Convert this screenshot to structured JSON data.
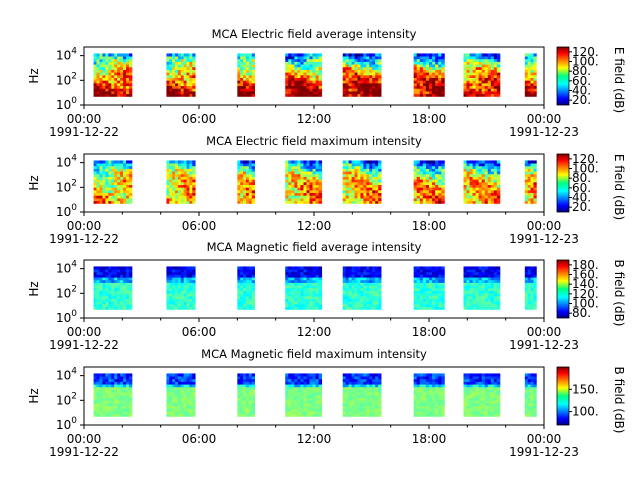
{
  "chart_data": [
    {
      "type": "heatmap",
      "title": "MCA  Electric field average intensity",
      "ylabel": "Hz",
      "yscale": "log",
      "ylim": [
        1,
        50000
      ],
      "ytick_labels": [
        {
          "base": "10",
          "exp": "0",
          "value": 1
        },
        {
          "base": "10",
          "exp": "2",
          "value": 100
        },
        {
          "base": "10",
          "exp": "4",
          "value": 10000
        }
      ],
      "x_tick_labels": [
        "00:00",
        "06:00",
        "12:00",
        "18:00",
        "00:00"
      ],
      "x_date_labels": [
        "1991-12-22",
        "1991-12-23"
      ],
      "xlim": [
        "1991-12-22T00:00",
        "1991-12-23T00:00"
      ],
      "colorbar": {
        "label": "E field (dB)",
        "range": [
          10,
          130
        ],
        "ticks": [
          "20.",
          "40.",
          "60.",
          "80.",
          "100.",
          "120."
        ],
        "tick_values": [
          20,
          40,
          60,
          80,
          100,
          120
        ]
      },
      "coverage_hours": [
        [
          0.5,
          2.5
        ],
        [
          4.3,
          5.8
        ],
        [
          8.0,
          8.9
        ],
        [
          10.5,
          12.4
        ],
        [
          13.5,
          15.5
        ],
        [
          17.2,
          18.8
        ],
        [
          19.8,
          21.7
        ],
        [
          23.0,
          23.6
        ]
      ],
      "data_freq_range_hz": [
        5,
        15000
      ],
      "intensity_profile": "high (yellow/red) at low frequency, decreasing with frequency; blue near top",
      "cmap": "jet"
    },
    {
      "type": "heatmap",
      "title": "MCA  Electric field maximum intensity",
      "ylabel": "Hz",
      "yscale": "log",
      "ylim": [
        1,
        50000
      ],
      "ytick_labels": [
        {
          "base": "10",
          "exp": "0",
          "value": 1
        },
        {
          "base": "10",
          "exp": "2",
          "value": 100
        },
        {
          "base": "10",
          "exp": "4",
          "value": 10000
        }
      ],
      "x_tick_labels": [
        "00:00",
        "06:00",
        "12:00",
        "18:00",
        "00:00"
      ],
      "x_date_labels": [
        "1991-12-22",
        "1991-12-23"
      ],
      "xlim": [
        "1991-12-22T00:00",
        "1991-12-23T00:00"
      ],
      "colorbar": {
        "label": "E field (dB)",
        "range": [
          10,
          130
        ],
        "ticks": [
          "20.",
          "40.",
          "60.",
          "80.",
          "100.",
          "120."
        ],
        "tick_values": [
          20,
          40,
          60,
          80,
          100,
          120
        ]
      },
      "coverage_hours": [
        [
          0.5,
          2.5
        ],
        [
          4.3,
          5.8
        ],
        [
          8.0,
          8.9
        ],
        [
          10.5,
          12.4
        ],
        [
          13.5,
          15.5
        ],
        [
          17.2,
          18.8
        ],
        [
          19.8,
          21.7
        ],
        [
          23.0,
          23.6
        ]
      ],
      "data_freq_range_hz": [
        5,
        15000
      ],
      "intensity_profile": "green/yellow throughout, blue near top",
      "cmap": "jet"
    },
    {
      "type": "heatmap",
      "title": "MCA  Magnetic field average intensity",
      "ylabel": "Hz",
      "yscale": "log",
      "ylim": [
        1,
        50000
      ],
      "ytick_labels": [
        {
          "base": "10",
          "exp": "0",
          "value": 1
        },
        {
          "base": "10",
          "exp": "2",
          "value": 100
        },
        {
          "base": "10",
          "exp": "4",
          "value": 10000
        }
      ],
      "x_tick_labels": [
        "00:00",
        "06:00",
        "12:00",
        "18:00",
        "00:00"
      ],
      "x_date_labels": [
        "1991-12-22",
        "1991-12-23"
      ],
      "xlim": [
        "1991-12-22T00:00",
        "1991-12-23T00:00"
      ],
      "colorbar": {
        "label": "B field (dB)",
        "range": [
          70,
          190
        ],
        "ticks": [
          "80.",
          "100.",
          "120.",
          "140.",
          "160.",
          "180."
        ],
        "tick_values": [
          80,
          100,
          120,
          140,
          160,
          180
        ]
      },
      "coverage_hours": [
        [
          0.5,
          2.5
        ],
        [
          4.3,
          5.8
        ],
        [
          8.0,
          8.9
        ],
        [
          10.5,
          12.4
        ],
        [
          13.5,
          15.5
        ],
        [
          17.2,
          18.8
        ],
        [
          19.8,
          21.7
        ],
        [
          23.0,
          23.6
        ]
      ],
      "data_freq_range_hz": [
        5,
        15000
      ],
      "intensity_profile": "blue (low) above ~1 kHz, cyan/green below",
      "cmap": "jet"
    },
    {
      "type": "heatmap",
      "title": "MCA  Magnetic field maximum intensity",
      "ylabel": "Hz",
      "yscale": "log",
      "ylim": [
        1,
        50000
      ],
      "ytick_labels": [
        {
          "base": "10",
          "exp": "0",
          "value": 1
        },
        {
          "base": "10",
          "exp": "2",
          "value": 100
        },
        {
          "base": "10",
          "exp": "4",
          "value": 10000
        }
      ],
      "x_tick_labels": [
        "00:00",
        "06:00",
        "12:00",
        "18:00",
        "00:00"
      ],
      "x_date_labels": [
        "1991-12-22",
        "1991-12-23"
      ],
      "xlim": [
        "1991-12-22T00:00",
        "1991-12-23T00:00"
      ],
      "colorbar": {
        "label": "B field (dB)",
        "range": [
          70,
          200
        ],
        "ticks": [
          "100.",
          "150."
        ],
        "tick_values": [
          100,
          150
        ]
      },
      "coverage_hours": [
        [
          0.5,
          2.5
        ],
        [
          4.3,
          5.8
        ],
        [
          8.0,
          8.9
        ],
        [
          10.5,
          12.4
        ],
        [
          13.5,
          15.5
        ],
        [
          17.2,
          18.8
        ],
        [
          19.8,
          21.7
        ],
        [
          23.0,
          23.6
        ]
      ],
      "data_freq_range_hz": [
        5,
        15000
      ],
      "intensity_profile": "blue near top, green below",
      "cmap": "jet"
    }
  ]
}
